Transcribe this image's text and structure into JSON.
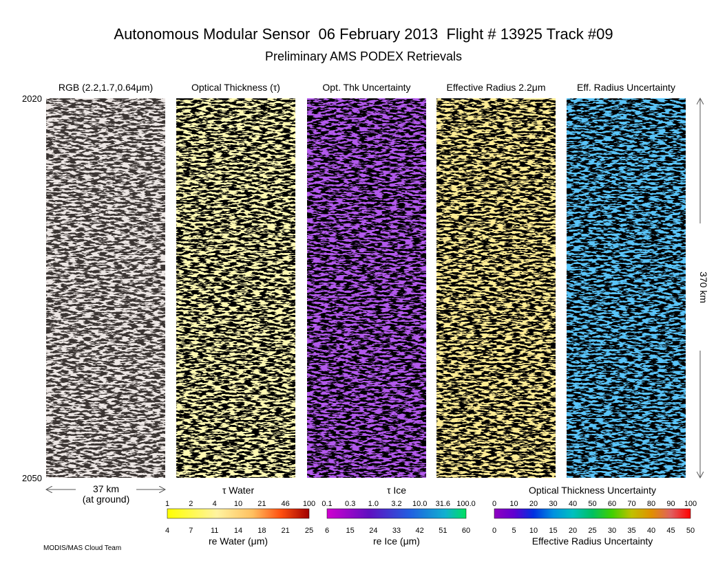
{
  "header": {
    "title": "Autonomous Modular Sensor  06 February 2013  Flight # 13925 Track #09",
    "subtitle": "Preliminary AMS PODEX Retrievals"
  },
  "panels": [
    {
      "label": "RGB (2.2,1.7,0.64μm)"
    },
    {
      "label": "Optical Thickness (τ)"
    },
    {
      "label": "Opt. Thk Uncertainty"
    },
    {
      "label": "Effective Radius 2.2μm"
    },
    {
      "label": "Eff. Radius Uncertainty"
    }
  ],
  "axis": {
    "top": "2020",
    "bottom": "2050",
    "height": "370 km",
    "width": "37 km",
    "width_note": "(at ground)"
  },
  "colorbars": [
    {
      "title": "τ Water",
      "top_ticks": [
        "1",
        "2",
        "4",
        "10",
        "21",
        "46",
        "100"
      ],
      "bottom_ticks": [
        "4",
        "7",
        "11",
        "14",
        "18",
        "21",
        "25"
      ],
      "bottom_title": "re Water (μm)"
    },
    {
      "title": "τ Ice",
      "top_ticks": [
        "0.1",
        "0.3",
        "1.0",
        "3.2",
        "10.0",
        "31.6",
        "100.0"
      ],
      "bottom_ticks": [
        "6",
        "15",
        "24",
        "33",
        "42",
        "51",
        "60"
      ],
      "bottom_title": "re Ice (μm)"
    },
    {
      "title": "Optical Thickness Uncertainty",
      "top_ticks": [
        "0",
        "10",
        "20",
        "30",
        "40",
        "50",
        "60",
        "70",
        "80",
        "90",
        "100"
      ],
      "bottom_ticks": [
        "0",
        "5",
        "10",
        "15",
        "20",
        "25",
        "30",
        "35",
        "40",
        "45",
        "50"
      ],
      "bottom_title": "Effective Radius Uncertainty"
    }
  ],
  "footer": "MODIS/MAS Cloud Team"
}
